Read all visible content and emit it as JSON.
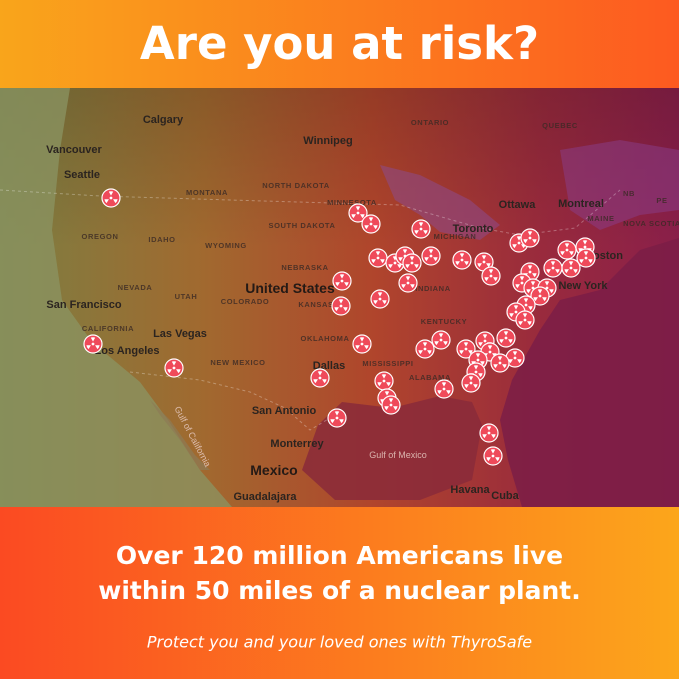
{
  "header": {
    "title": "Are you at risk?"
  },
  "map": {
    "labels": [
      "Calgary",
      "ONTARIO",
      "QUEBEC",
      "Vancouver",
      "Winnipeg",
      "Seattle",
      "MONTANA",
      "NORTH DAKOTA",
      "MINNESOTA",
      "Ottawa",
      "Montreal",
      "OREGON",
      "IDAHO",
      "WYOMING",
      "SOUTH DAKOTA",
      "MICHIGAN",
      "Toronto",
      "NEBRASKA",
      "Boston",
      "NEVADA",
      "UTAH",
      "United States",
      "COLORADO",
      "KANSAS",
      "INDIANA",
      "New York",
      "San Francisco",
      "CALIFORNIA",
      "Las Vegas",
      "KENTUCKY",
      "NEW MEXICO",
      "OKLAHOMA",
      "Dallas",
      "Los Angeles",
      "San Antonio",
      "Monterrey",
      "Gulf of Mexico",
      "Mexico",
      "Guadalajara",
      "Havana",
      "Cuba",
      "ALABAMA",
      "MISSISSIPPI",
      "Gulf of California",
      "MAINE",
      "NB",
      "PE",
      "NOVA SCOTIA"
    ]
  },
  "footer": {
    "headline": [
      "Over 120 million Americans live",
      "within 50 miles of a nuclear plant."
    ],
    "tagline": "Protect you and your loved ones with ThyroSafe"
  }
}
